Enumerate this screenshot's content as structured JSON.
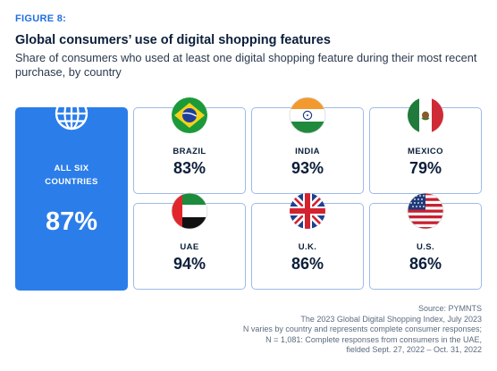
{
  "header": {
    "figure_label": "FIGURE 8:",
    "title": "Global consumers’ use of digital shopping features",
    "subtitle": "Share of consumers who used at least one digital shopping feature during their most recent purchase, by country"
  },
  "colors": {
    "accent": "#2b7de9",
    "card_border": "#9dbbe8",
    "text_dark": "#0b1f3a"
  },
  "chart_data": {
    "type": "table",
    "title": "Global consumers’ use of digital shopping features",
    "subtitle": "Share of consumers who used at least one digital shopping feature during their most recent purchase, by country",
    "summary": {
      "label_line1": "ALL SIX",
      "label_line2": "COUNTRIES",
      "value": 87,
      "display": "87%",
      "icon": "globe-icon"
    },
    "categories": [
      "BRAZIL",
      "INDIA",
      "MEXICO",
      "UAE",
      "U.K.",
      "U.S."
    ],
    "values": [
      83,
      93,
      79,
      94,
      86,
      86
    ],
    "cells": [
      {
        "country": "BRAZIL",
        "value": 83,
        "display": "83%",
        "icon": "brazil-flag-icon"
      },
      {
        "country": "INDIA",
        "value": 93,
        "display": "93%",
        "icon": "india-flag-icon"
      },
      {
        "country": "MEXICO",
        "value": 79,
        "display": "79%",
        "icon": "mexico-flag-icon"
      },
      {
        "country": "UAE",
        "value": 94,
        "display": "94%",
        "icon": "uae-flag-icon"
      },
      {
        "country": "U.K.",
        "value": 86,
        "display": "86%",
        "icon": "uk-flag-icon"
      },
      {
        "country": "U.S.",
        "value": 86,
        "display": "86%",
        "icon": "us-flag-icon"
      }
    ]
  },
  "source": {
    "line1": "Source: PYMNTS",
    "line2": "The 2023 Global Digital Shopping Index, July 2023",
    "line3": "N varies by country and represents complete consumer responses;",
    "line4": "N = 1,081: Complete responses from consumers in the UAE,",
    "line5": "fielded Sept. 27, 2022 – Oct. 31, 2022"
  }
}
